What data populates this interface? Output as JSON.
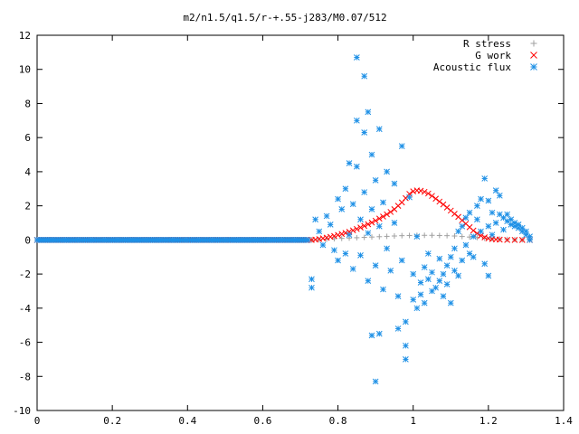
{
  "chart_data": {
    "type": "scatter",
    "title": "m2/n1.5/q1.5/r-+.55-j283/M0.07/512",
    "xlabel": "",
    "ylabel": "",
    "xlim": [
      0,
      1.4
    ],
    "ylim": [
      -10,
      12
    ],
    "x_ticks": [
      0,
      0.2,
      0.4,
      0.6,
      0.8,
      1,
      1.2,
      1.4
    ],
    "x_tick_labels": [
      "0",
      "0.2",
      "0.4",
      "0.6",
      "0.8",
      "1",
      "1.2",
      "1.4"
    ],
    "y_ticks": [
      -10,
      -8,
      -6,
      -4,
      -2,
      0,
      2,
      4,
      6,
      8,
      10,
      12
    ],
    "y_tick_labels": [
      "-10",
      "-8",
      "-6",
      "-4",
      "-2",
      "0",
      "2",
      "4",
      "6",
      "8",
      "10",
      "12"
    ],
    "grid": false,
    "legend_position": "top-right",
    "series": [
      {
        "name": "R stress",
        "marker": "plus",
        "color": "#a0a0a0",
        "segments": [
          {
            "x_start": 0.0,
            "x_end": 0.72,
            "y": 0.0,
            "count": 130
          }
        ],
        "points": [
          [
            0.73,
            0.0
          ],
          [
            0.75,
            0.02
          ],
          [
            0.77,
            0.05
          ],
          [
            0.79,
            0.07
          ],
          [
            0.81,
            0.09
          ],
          [
            0.83,
            0.11
          ],
          [
            0.85,
            0.13
          ],
          [
            0.87,
            0.15
          ],
          [
            0.89,
            0.17
          ],
          [
            0.91,
            0.19
          ],
          [
            0.93,
            0.21
          ],
          [
            0.95,
            0.23
          ],
          [
            0.97,
            0.25
          ],
          [
            0.99,
            0.26
          ],
          [
            1.01,
            0.27
          ],
          [
            1.03,
            0.27
          ],
          [
            1.05,
            0.27
          ],
          [
            1.07,
            0.26
          ],
          [
            1.09,
            0.25
          ],
          [
            1.11,
            0.23
          ],
          [
            1.13,
            0.2
          ],
          [
            1.15,
            0.17
          ],
          [
            1.17,
            0.14
          ],
          [
            1.19,
            0.1
          ],
          [
            1.21,
            0.07
          ],
          [
            1.23,
            0.05
          ],
          [
            1.25,
            0.03
          ],
          [
            1.27,
            0.02
          ],
          [
            1.29,
            0.01
          ],
          [
            1.31,
            0.0
          ]
        ]
      },
      {
        "name": "G work",
        "marker": "cross",
        "color": "#ff0000",
        "segments": [
          {
            "x_start": 0.0,
            "x_end": 0.72,
            "y": 0.0,
            "count": 130
          }
        ],
        "points": [
          [
            0.73,
            0.0
          ],
          [
            0.74,
            0.02
          ],
          [
            0.75,
            0.05
          ],
          [
            0.76,
            0.09
          ],
          [
            0.77,
            0.13
          ],
          [
            0.78,
            0.18
          ],
          [
            0.79,
            0.23
          ],
          [
            0.8,
            0.29
          ],
          [
            0.81,
            0.35
          ],
          [
            0.82,
            0.41
          ],
          [
            0.83,
            0.48
          ],
          [
            0.84,
            0.56
          ],
          [
            0.85,
            0.64
          ],
          [
            0.86,
            0.73
          ],
          [
            0.87,
            0.82
          ],
          [
            0.88,
            0.92
          ],
          [
            0.89,
            1.02
          ],
          [
            0.9,
            1.13
          ],
          [
            0.91,
            1.25
          ],
          [
            0.92,
            1.37
          ],
          [
            0.93,
            1.5
          ],
          [
            0.94,
            1.64
          ],
          [
            0.95,
            1.8
          ],
          [
            0.96,
            2.0
          ],
          [
            0.97,
            2.2
          ],
          [
            0.98,
            2.45
          ],
          [
            0.99,
            2.7
          ],
          [
            1.0,
            2.85
          ],
          [
            1.01,
            2.9
          ],
          [
            1.02,
            2.88
          ],
          [
            1.03,
            2.82
          ],
          [
            1.04,
            2.72
          ],
          [
            1.05,
            2.58
          ],
          [
            1.06,
            2.42
          ],
          [
            1.07,
            2.25
          ],
          [
            1.08,
            2.08
          ],
          [
            1.09,
            1.9
          ],
          [
            1.1,
            1.72
          ],
          [
            1.11,
            1.53
          ],
          [
            1.12,
            1.35
          ],
          [
            1.13,
            1.15
          ],
          [
            1.14,
            0.95
          ],
          [
            1.15,
            0.75
          ],
          [
            1.16,
            0.55
          ],
          [
            1.17,
            0.38
          ],
          [
            1.18,
            0.25
          ],
          [
            1.19,
            0.15
          ],
          [
            1.2,
            0.09
          ],
          [
            1.21,
            0.05
          ],
          [
            1.22,
            0.03
          ],
          [
            1.23,
            0.02
          ],
          [
            1.25,
            0.0
          ],
          [
            1.27,
            0.0
          ],
          [
            1.29,
            0.0
          ],
          [
            1.31,
            0.0
          ]
        ]
      },
      {
        "name": "Acoustic flux",
        "marker": "star",
        "color": "#1e90e6",
        "segments": [
          {
            "x_start": 0.0,
            "x_end": 0.72,
            "y": 0.0,
            "count": 150
          }
        ],
        "points": [
          [
            0.73,
            -2.8
          ],
          [
            0.73,
            -2.3
          ],
          [
            0.74,
            1.2
          ],
          [
            0.75,
            0.5
          ],
          [
            0.76,
            -0.3
          ],
          [
            0.77,
            1.4
          ],
          [
            0.78,
            0.9
          ],
          [
            0.79,
            -0.6
          ],
          [
            0.8,
            2.4
          ],
          [
            0.8,
            -1.2
          ],
          [
            0.81,
            1.8
          ],
          [
            0.82,
            -0.8
          ],
          [
            0.82,
            3.0
          ],
          [
            0.83,
            4.5
          ],
          [
            0.83,
            0.3
          ],
          [
            0.84,
            2.1
          ],
          [
            0.84,
            -1.7
          ],
          [
            0.85,
            10.7
          ],
          [
            0.85,
            7.0
          ],
          [
            0.85,
            4.3
          ],
          [
            0.86,
            1.2
          ],
          [
            0.86,
            -0.9
          ],
          [
            0.87,
            9.6
          ],
          [
            0.87,
            6.3
          ],
          [
            0.87,
            2.8
          ],
          [
            0.88,
            7.5
          ],
          [
            0.88,
            0.4
          ],
          [
            0.88,
            -2.4
          ],
          [
            0.89,
            -5.6
          ],
          [
            0.89,
            5.0
          ],
          [
            0.89,
            1.8
          ],
          [
            0.9,
            -1.5
          ],
          [
            0.9,
            3.5
          ],
          [
            0.9,
            -8.3
          ],
          [
            0.91,
            -5.5
          ],
          [
            0.91,
            6.5
          ],
          [
            0.91,
            0.8
          ],
          [
            0.92,
            -2.9
          ],
          [
            0.92,
            2.2
          ],
          [
            0.93,
            4.0
          ],
          [
            0.93,
            -0.5
          ],
          [
            0.94,
            -1.8
          ],
          [
            0.95,
            3.3
          ],
          [
            0.95,
            1.0
          ],
          [
            0.96,
            -3.3
          ],
          [
            0.96,
            -5.2
          ],
          [
            0.97,
            5.5
          ],
          [
            0.97,
            -1.2
          ],
          [
            0.98,
            -4.8
          ],
          [
            0.98,
            -7.0
          ],
          [
            0.98,
            -6.2
          ],
          [
            0.99,
            2.5
          ],
          [
            1.0,
            -2.0
          ],
          [
            1.0,
            -3.5
          ],
          [
            1.01,
            -4.0
          ],
          [
            1.01,
            0.2
          ],
          [
            1.02,
            -3.2
          ],
          [
            1.02,
            -2.5
          ],
          [
            1.03,
            -3.7
          ],
          [
            1.03,
            -1.6
          ],
          [
            1.04,
            -2.3
          ],
          [
            1.04,
            -0.8
          ],
          [
            1.05,
            -3.0
          ],
          [
            1.05,
            -1.9
          ],
          [
            1.06,
            -2.8
          ],
          [
            1.07,
            -2.4
          ],
          [
            1.07,
            -1.1
          ],
          [
            1.08,
            -3.3
          ],
          [
            1.08,
            -2.0
          ],
          [
            1.09,
            -1.5
          ],
          [
            1.09,
            -2.6
          ],
          [
            1.1,
            -3.7
          ],
          [
            1.1,
            -1.0
          ],
          [
            1.11,
            -0.5
          ],
          [
            1.11,
            -1.8
          ],
          [
            1.12,
            0.5
          ],
          [
            1.12,
            -2.1
          ],
          [
            1.13,
            -1.2
          ],
          [
            1.13,
            0.8
          ],
          [
            1.14,
            -0.3
          ],
          [
            1.14,
            1.3
          ],
          [
            1.15,
            -0.8
          ],
          [
            1.15,
            1.6
          ],
          [
            1.16,
            0.2
          ],
          [
            1.16,
            -1.0
          ],
          [
            1.17,
            2.0
          ],
          [
            1.17,
            1.2
          ],
          [
            1.18,
            0.5
          ],
          [
            1.18,
            2.4
          ],
          [
            1.19,
            -1.4
          ],
          [
            1.19,
            3.6
          ],
          [
            1.2,
            0.8
          ],
          [
            1.2,
            -2.1
          ],
          [
            1.2,
            2.3
          ],
          [
            1.21,
            1.6
          ],
          [
            1.21,
            0.3
          ],
          [
            1.22,
            2.9
          ],
          [
            1.22,
            1.0
          ],
          [
            1.23,
            2.6
          ],
          [
            1.23,
            1.5
          ],
          [
            1.24,
            1.3
          ],
          [
            1.24,
            0.6
          ],
          [
            1.25,
            1.1
          ],
          [
            1.25,
            1.5
          ],
          [
            1.26,
            1.2
          ],
          [
            1.26,
            0.9
          ],
          [
            1.27,
            1.0
          ],
          [
            1.27,
            0.8
          ],
          [
            1.28,
            0.9
          ],
          [
            1.28,
            0.7
          ],
          [
            1.29,
            0.7
          ],
          [
            1.29,
            0.5
          ],
          [
            1.3,
            0.5
          ],
          [
            1.3,
            0.3
          ],
          [
            1.31,
            0.2
          ],
          [
            1.31,
            0.0
          ]
        ]
      }
    ]
  }
}
